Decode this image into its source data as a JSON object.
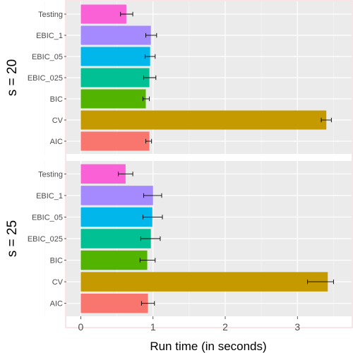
{
  "chart_data": {
    "type": "bar",
    "orientation": "horizontal",
    "xlabel": "Run time (in seconds)",
    "xlim": [
      -0.2,
      3.75
    ],
    "x_ticks": [
      0,
      1,
      2,
      3
    ],
    "grid": true,
    "categories": [
      "AIC",
      "CV",
      "BIC",
      "EBIC_025",
      "EBIC_05",
      "EBIC_1",
      "Testing"
    ],
    "colors": {
      "AIC": "#F8766D",
      "CV": "#C49A00",
      "BIC": "#53B400",
      "EBIC_025": "#00C094",
      "EBIC_05": "#00B6EB",
      "EBIC_1": "#A58AFF",
      "Testing": "#FB61D7"
    },
    "panels": [
      {
        "label": "s = 20",
        "bars": [
          {
            "category": "AIC",
            "value": 0.95,
            "err_low": 0.9,
            "err_high": 0.98
          },
          {
            "category": "CV",
            "value": 3.4,
            "err_low": 3.33,
            "err_high": 3.47
          },
          {
            "category": "BIC",
            "value": 0.9,
            "err_low": 0.86,
            "err_high": 0.95
          },
          {
            "category": "EBIC_025",
            "value": 0.95,
            "err_low": 0.87,
            "err_high": 1.04
          },
          {
            "category": "EBIC_05",
            "value": 0.96,
            "err_low": 0.89,
            "err_high": 1.03
          },
          {
            "category": "EBIC_1",
            "value": 0.97,
            "err_low": 0.9,
            "err_high": 1.05
          },
          {
            "category": "Testing",
            "value": 0.63,
            "err_low": 0.55,
            "err_high": 0.72
          }
        ]
      },
      {
        "label": "s = 25",
        "bars": [
          {
            "category": "AIC",
            "value": 0.93,
            "err_low": 0.84,
            "err_high": 1.02
          },
          {
            "category": "CV",
            "value": 3.42,
            "err_low": 3.14,
            "err_high": 3.5
          },
          {
            "category": "BIC",
            "value": 0.92,
            "err_low": 0.82,
            "err_high": 1.03
          },
          {
            "category": "EBIC_025",
            "value": 0.97,
            "err_low": 0.83,
            "err_high": 1.1
          },
          {
            "category": "EBIC_05",
            "value": 0.99,
            "err_low": 0.86,
            "err_high": 1.13
          },
          {
            "category": "EBIC_1",
            "value": 1.0,
            "err_low": 0.87,
            "err_high": 1.12
          },
          {
            "category": "Testing",
            "value": 0.62,
            "err_low": 0.52,
            "err_high": 0.72
          }
        ]
      }
    ]
  }
}
